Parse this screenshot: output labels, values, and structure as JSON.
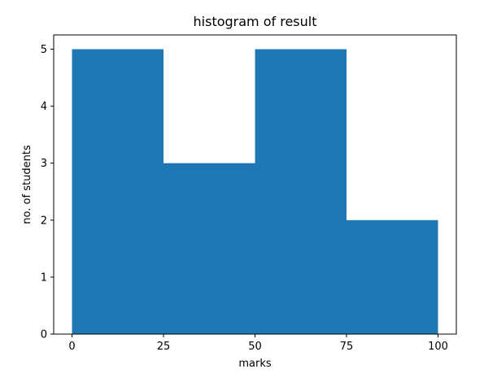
{
  "chart_data": {
    "type": "bar",
    "title": "histogram of result",
    "xlabel": "marks",
    "ylabel": "no. of students",
    "bins": [
      {
        "start": 0,
        "end": 25,
        "count": 5
      },
      {
        "start": 25,
        "end": 50,
        "count": 3
      },
      {
        "start": 50,
        "end": 75,
        "count": 5
      },
      {
        "start": 75,
        "end": 100,
        "count": 2
      }
    ],
    "xlim": [
      -5,
      105
    ],
    "ylim": [
      0,
      5.25
    ],
    "xticks": [
      0,
      25,
      50,
      75,
      100
    ],
    "yticks": [
      0,
      1,
      2,
      3,
      4,
      5
    ],
    "grid": false,
    "bar_color": "#1f77b4"
  }
}
